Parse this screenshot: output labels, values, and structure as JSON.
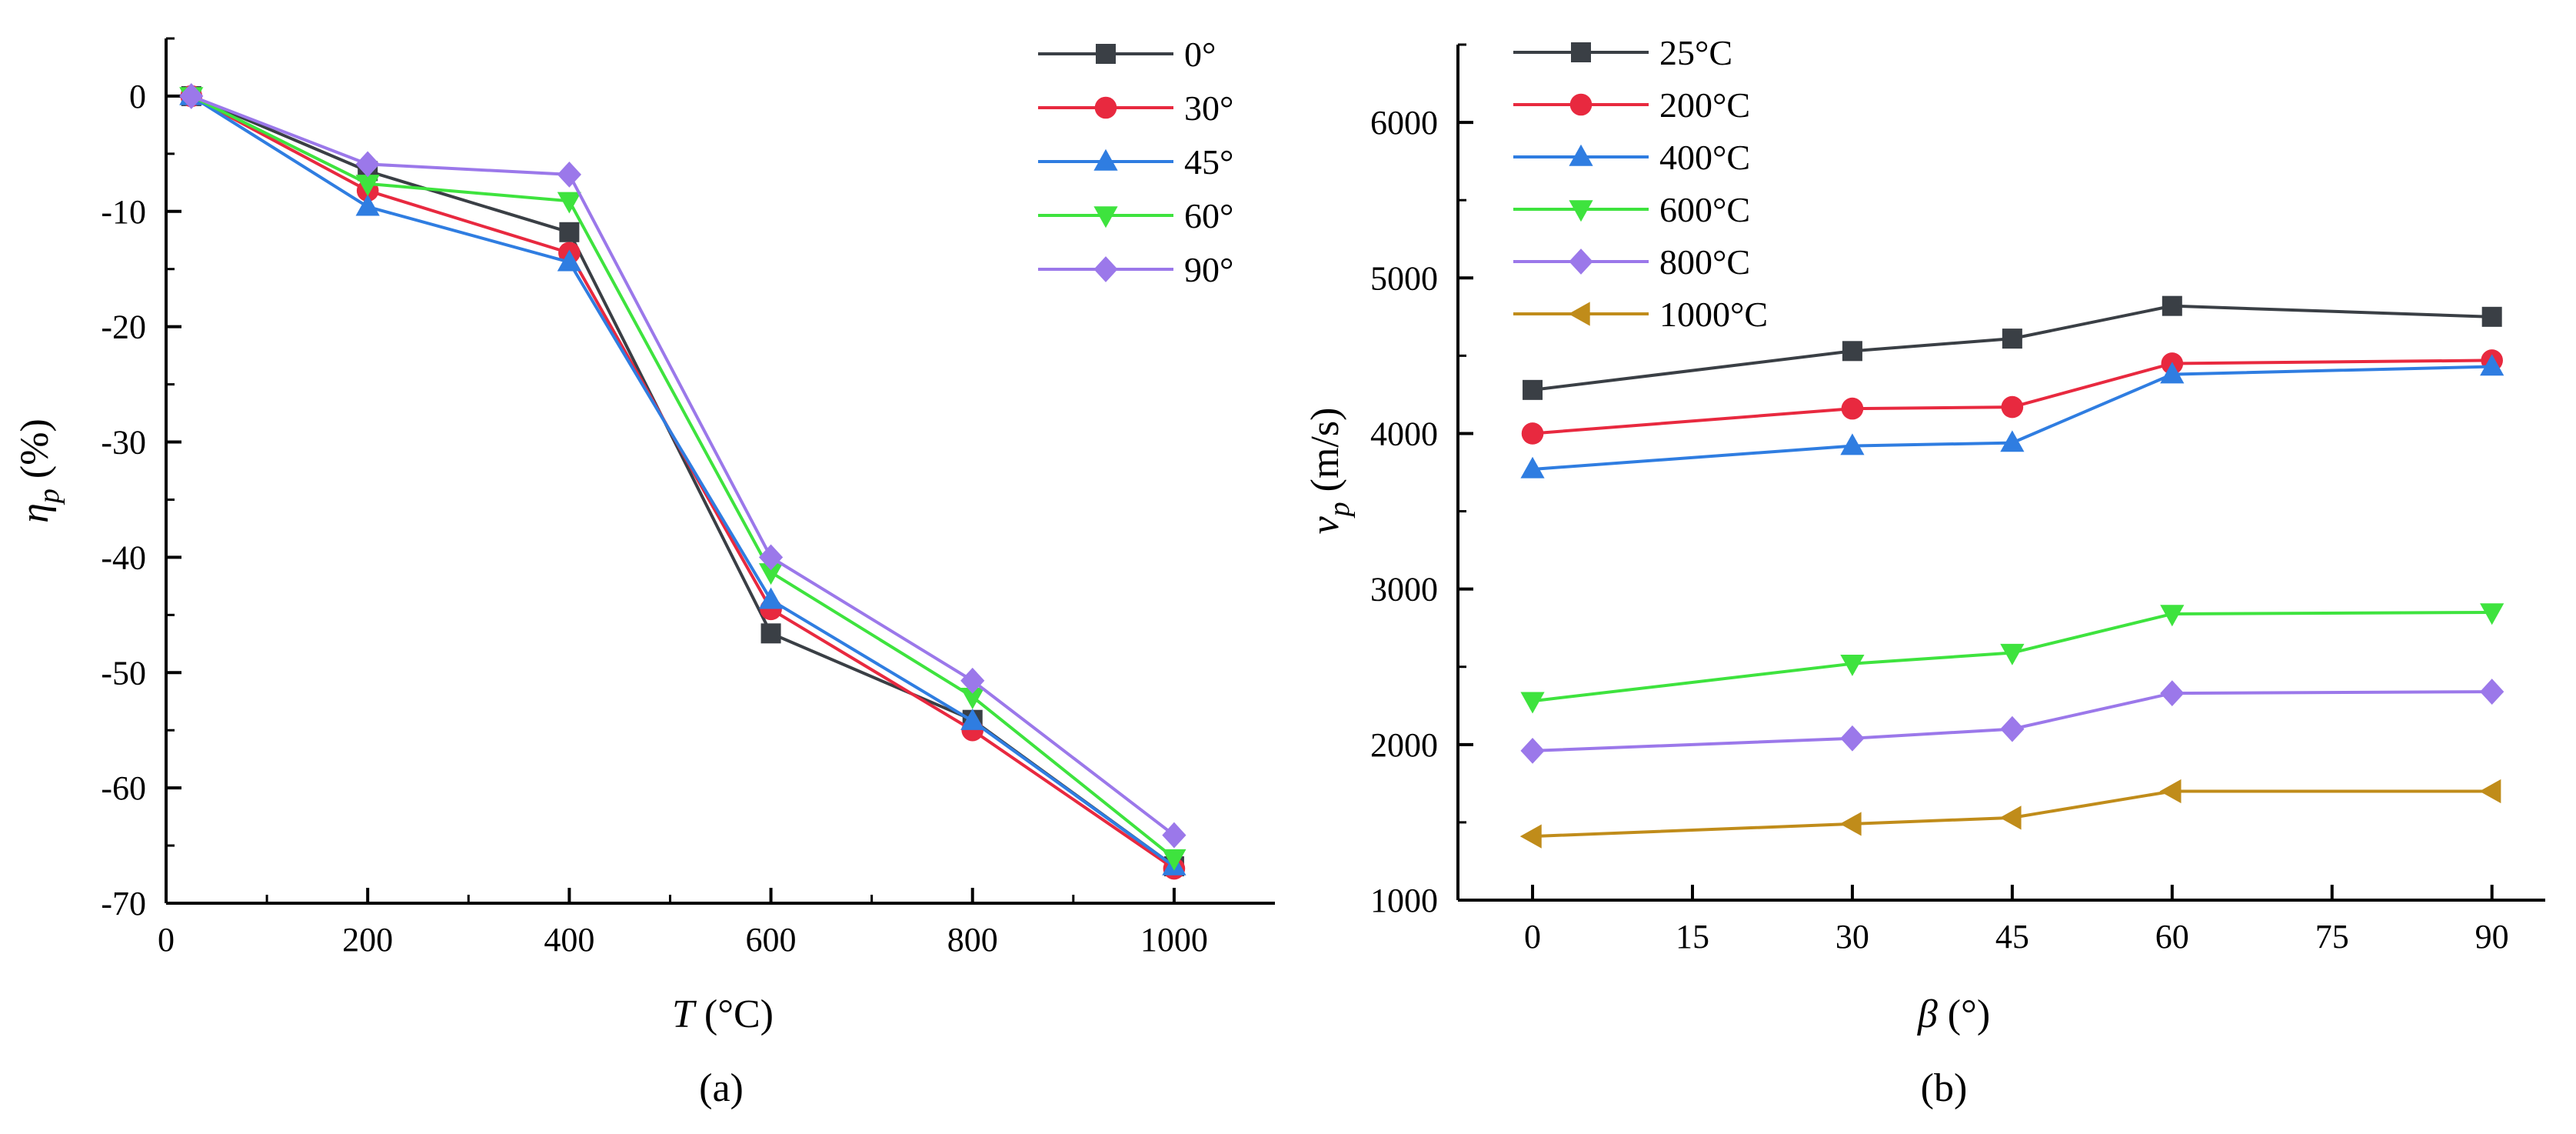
{
  "figure": {
    "panel_a_caption": "(a)",
    "panel_b_caption": "(b)"
  },
  "chart_data": [
    {
      "type": "line",
      "panel": "(a)",
      "title": "",
      "xlabel_italic": "T",
      "xlabel_rest": " (°C)",
      "ylabel_main": "η",
      "ylabel_sub": "p",
      "ylabel_rest": " (%)",
      "xlim": [
        0,
        1100
      ],
      "ylim": [
        -70,
        5
      ],
      "xticks": [
        0,
        200,
        400,
        600,
        800,
        1000
      ],
      "yticks": [
        0,
        -10,
        -20,
        -30,
        -40,
        -50,
        -60,
        -70
      ],
      "xtick_labels": [
        "0",
        "200",
        "400",
        "600",
        "800",
        "1000"
      ],
      "ytick_labels": [
        "0",
        "-10",
        "-20",
        "-30",
        "-40",
        "-50",
        "-60",
        "-70"
      ],
      "grid": false,
      "legend_position": "top-right",
      "x": [
        25,
        200,
        400,
        600,
        800,
        1000
      ],
      "series": [
        {
          "name": "0°",
          "color": "#3a3f45",
          "marker": "square",
          "values": [
            0,
            -6.5,
            -11.8,
            -46.6,
            -54.1,
            -66.8
          ]
        },
        {
          "name": "30°",
          "color": "#e8293f",
          "marker": "circle",
          "values": [
            0,
            -8.2,
            -13.6,
            -44.5,
            -55.0,
            -67.0
          ]
        },
        {
          "name": "45°",
          "color": "#2f7de1",
          "marker": "triangle-up",
          "values": [
            0,
            -9.6,
            -14.4,
            -43.7,
            -54.2,
            -66.8
          ]
        },
        {
          "name": "60°",
          "color": "#3ee33e",
          "marker": "triangle-down",
          "values": [
            0,
            -7.6,
            -9.1,
            -41.3,
            -52.1,
            -66.1
          ]
        },
        {
          "name": "90°",
          "color": "#9b78ea",
          "marker": "diamond",
          "values": [
            0,
            -5.9,
            -6.8,
            -40.0,
            -50.7,
            -64.1
          ]
        }
      ]
    },
    {
      "type": "line",
      "panel": "(b)",
      "title": "",
      "xlabel_italic": "β",
      "xlabel_rest": " (°)",
      "ylabel_main": "v",
      "ylabel_sub": "p",
      "ylabel_rest": " (m/s)",
      "xlim": [
        -7,
        95
      ],
      "ylim": [
        1000,
        6500
      ],
      "xticks": [
        0,
        15,
        30,
        45,
        60,
        75,
        90
      ],
      "yticks": [
        1000,
        2000,
        3000,
        4000,
        5000,
        6000
      ],
      "xtick_labels": [
        "0",
        "15",
        "30",
        "45",
        "60",
        "75",
        "90"
      ],
      "ytick_labels": [
        "1000",
        "2000",
        "3000",
        "4000",
        "5000",
        "6000"
      ],
      "grid": false,
      "legend_position": "top-left",
      "x": [
        0,
        30,
        45,
        60,
        90
      ],
      "series": [
        {
          "name": "25°C",
          "color": "#3a3f45",
          "marker": "square",
          "values": [
            4280,
            4530,
            4610,
            4820,
            4750
          ]
        },
        {
          "name": "200°C",
          "color": "#e8293f",
          "marker": "circle",
          "values": [
            4000,
            4160,
            4170,
            4450,
            4470
          ]
        },
        {
          "name": "400°C",
          "color": "#2f7de1",
          "marker": "triangle-up",
          "values": [
            3770,
            3920,
            3940,
            4380,
            4430
          ]
        },
        {
          "name": "600°C",
          "color": "#3ee33e",
          "marker": "triangle-down",
          "values": [
            2280,
            2520,
            2590,
            2840,
            2850
          ]
        },
        {
          "name": "800°C",
          "color": "#9b78ea",
          "marker": "diamond",
          "values": [
            1960,
            2040,
            2100,
            2330,
            2340
          ]
        },
        {
          "name": "1000°C",
          "color": "#c08c1a",
          "marker": "triangle-left",
          "values": [
            1410,
            1490,
            1530,
            1700,
            1700
          ]
        }
      ]
    }
  ]
}
